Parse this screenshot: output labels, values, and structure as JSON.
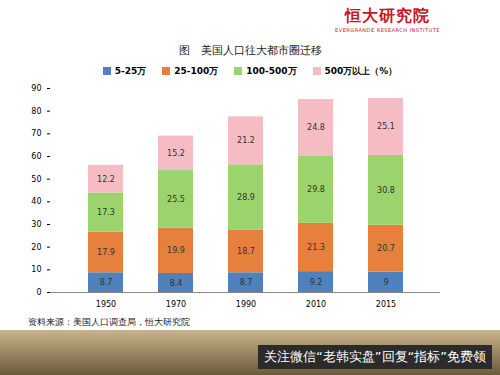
{
  "chart_data": {
    "type": "bar",
    "title": "图　美国人口往大都市圈迁移",
    "categories": [
      "1950",
      "1970",
      "1990",
      "2010",
      "2015"
    ],
    "series": [
      {
        "name": "5-25万",
        "color": "#4f81bd",
        "values": [
          8.7,
          8.4,
          8.7,
          9.2,
          9.0
        ]
      },
      {
        "name": "25-100万",
        "color": "#e8803d",
        "values": [
          17.9,
          19.9,
          18.7,
          21.3,
          20.7
        ]
      },
      {
        "name": "100-500万",
        "color": "#9bd46d",
        "values": [
          17.3,
          25.5,
          28.9,
          29.8,
          30.8
        ]
      },
      {
        "name": "500万以上（%）",
        "color": "#f5bcc4",
        "values": [
          12.2,
          15.2,
          21.2,
          24.8,
          25.1
        ]
      }
    ],
    "stacked": true,
    "data_labels": true,
    "legend": "top",
    "ylim": [
      0,
      90
    ],
    "yticks": [
      0,
      10,
      20,
      30,
      40,
      50,
      60,
      70,
      80,
      90
    ],
    "annotations": [
      "资料来源：美国人口调查局，恒大研究院"
    ]
  },
  "page": {
    "logo": "恒大研究院",
    "logo_subtitle": "EVERGRANDE RESEARCH INSTITUTE",
    "footer": "关注微信“老韩实盘”回复“指标”免费领"
  }
}
